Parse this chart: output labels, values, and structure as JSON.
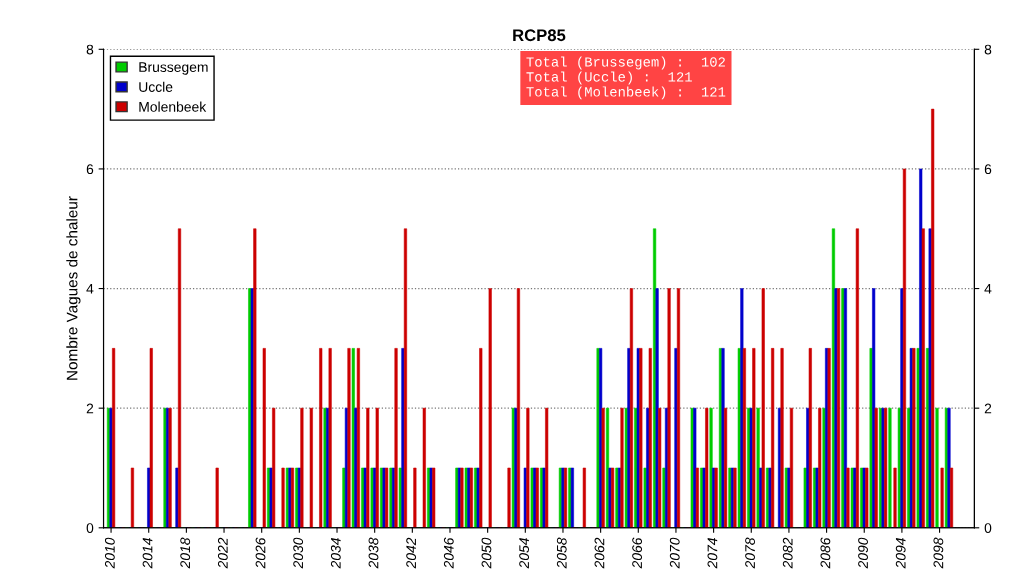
{
  "chart_data": {
    "type": "bar",
    "title": "RCP85",
    "ylabel": "Nombre Vagues de chaleur",
    "x": [
      2010,
      2011,
      2012,
      2013,
      2014,
      2015,
      2016,
      2017,
      2018,
      2019,
      2020,
      2021,
      2022,
      2023,
      2024,
      2025,
      2026,
      2027,
      2028,
      2029,
      2030,
      2031,
      2032,
      2033,
      2034,
      2035,
      2036,
      2037,
      2038,
      2039,
      2040,
      2041,
      2042,
      2043,
      2044,
      2045,
      2046,
      2047,
      2048,
      2049,
      2050,
      2051,
      2052,
      2053,
      2054,
      2055,
      2056,
      2057,
      2058,
      2059,
      2060,
      2061,
      2062,
      2063,
      2064,
      2065,
      2066,
      2067,
      2068,
      2069,
      2070,
      2071,
      2072,
      2073,
      2074,
      2075,
      2076,
      2077,
      2078,
      2079,
      2080,
      2081,
      2082,
      2083,
      2084,
      2085,
      2086,
      2087,
      2088,
      2089,
      2090,
      2091,
      2092,
      2093,
      2094,
      2095,
      2096,
      2097,
      2098,
      2099
    ],
    "series": [
      {
        "name": "Brussegem",
        "color": "#00cc00",
        "values": [
          2,
          0,
          0,
          0,
          0,
          0,
          2,
          0,
          0,
          0,
          0,
          0,
          0,
          0,
          0,
          4,
          0,
          1,
          0,
          1,
          1,
          0,
          0,
          2,
          0,
          1,
          3,
          1,
          1,
          1,
          1,
          1,
          0,
          0,
          1,
          0,
          0,
          1,
          1,
          1,
          0,
          0,
          0,
          2,
          0,
          1,
          1,
          0,
          1,
          1,
          0,
          0,
          3,
          2,
          1,
          2,
          2,
          1,
          5,
          1,
          0,
          0,
          2,
          1,
          2,
          3,
          1,
          3,
          2,
          2,
          1,
          0,
          1,
          0,
          1,
          1,
          2,
          5,
          4,
          1,
          1,
          3,
          2,
          2,
          2,
          2,
          3,
          3,
          2,
          2
        ]
      },
      {
        "name": "Uccle",
        "color": "#0000cc",
        "values": [
          2,
          0,
          0,
          0,
          1,
          0,
          2,
          1,
          0,
          0,
          0,
          0,
          0,
          0,
          0,
          4,
          0,
          1,
          0,
          1,
          1,
          0,
          0,
          2,
          0,
          2,
          2,
          1,
          1,
          1,
          1,
          3,
          0,
          0,
          1,
          0,
          0,
          1,
          1,
          1,
          0,
          0,
          0,
          2,
          1,
          1,
          1,
          0,
          1,
          1,
          0,
          0,
          3,
          1,
          1,
          3,
          3,
          2,
          4,
          2,
          3,
          0,
          2,
          1,
          1,
          3,
          1,
          4,
          2,
          1,
          1,
          2,
          1,
          0,
          2,
          1,
          3,
          4,
          4,
          1,
          1,
          4,
          2,
          0,
          4,
          3,
          6,
          5,
          0,
          2
        ]
      },
      {
        "name": "Molenbeek",
        "color": "#cc0000",
        "values": [
          3,
          0,
          1,
          0,
          3,
          0,
          2,
          5,
          0,
          0,
          0,
          1,
          0,
          0,
          0,
          5,
          3,
          2,
          1,
          1,
          2,
          2,
          3,
          3,
          0,
          3,
          3,
          2,
          2,
          1,
          3,
          5,
          1,
          2,
          1,
          0,
          0,
          1,
          1,
          3,
          4,
          0,
          1,
          4,
          2,
          1,
          2,
          0,
          1,
          0,
          1,
          0,
          2,
          1,
          2,
          4,
          3,
          3,
          2,
          4,
          4,
          0,
          1,
          2,
          1,
          2,
          1,
          3,
          3,
          4,
          3,
          3,
          2,
          0,
          3,
          2,
          3,
          4,
          1,
          5,
          1,
          2,
          2,
          1,
          6,
          3,
          5,
          7,
          1,
          1
        ]
      }
    ],
    "xlim": [
      2009.2,
      2101.7
    ],
    "xticks": [
      2010,
      2014,
      2018,
      2022,
      2026,
      2030,
      2034,
      2038,
      2042,
      2046,
      2050,
      2054,
      2058,
      2062,
      2066,
      2070,
      2074,
      2078,
      2082,
      2086,
      2090,
      2094,
      2098
    ],
    "ylim": [
      0,
      8
    ],
    "yticks": [
      0,
      2,
      4,
      6,
      8
    ],
    "y2lim": [
      0,
      8
    ],
    "y2ticks": [
      0,
      2,
      4,
      6,
      8
    ],
    "grid": "y",
    "legend": "top left",
    "annotations": [
      "Total (Brussegem) :  102\nTotal (Uccle) :  121\nTotal (Molenbeek) :  121"
    ]
  }
}
